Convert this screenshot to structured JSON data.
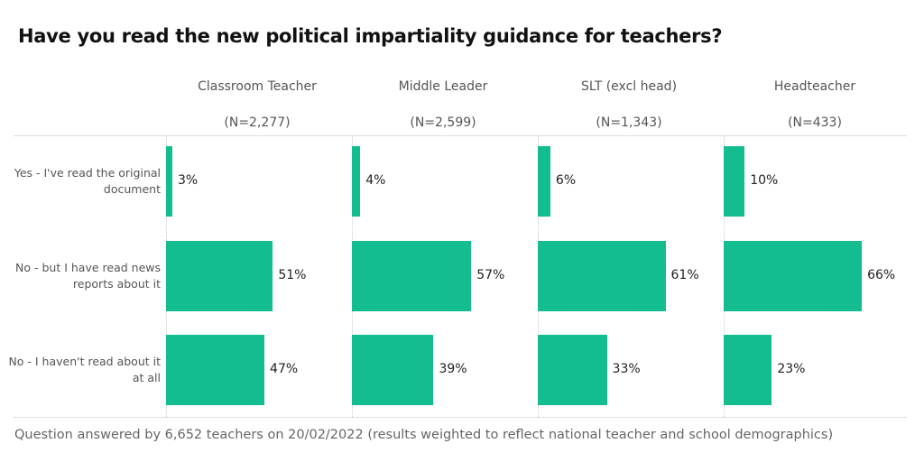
{
  "chart_data": {
    "type": "bar",
    "title": "Have you read the new political impartiality guidance for teachers?",
    "panels": [
      {
        "name": "Classroom Teacher",
        "n": "(N=2,277)"
      },
      {
        "name": "Middle Leader",
        "n": "(N=2,599)"
      },
      {
        "name": "SLT (excl head)",
        "n": "(N=1,343)"
      },
      {
        "name": "Headteacher",
        "n": "(N=433)"
      }
    ],
    "categories": [
      "Yes - I've read the original document",
      "No - but I have read news reports about it",
      "No - I haven't read about it at all"
    ],
    "series": [
      {
        "name": "Classroom Teacher",
        "values": [
          3,
          51,
          47
        ]
      },
      {
        "name": "Middle Leader",
        "values": [
          4,
          57,
          39
        ]
      },
      {
        "name": "SLT (excl head)",
        "values": [
          6,
          61,
          33
        ]
      },
      {
        "name": "Headteacher",
        "values": [
          10,
          66,
          23
        ]
      }
    ],
    "unit": "%",
    "color": "#13bd8f",
    "footnote": "Question answered by 6,652 teachers on 20/02/2022 (results weighted to reflect national teacher and school demographics)"
  }
}
